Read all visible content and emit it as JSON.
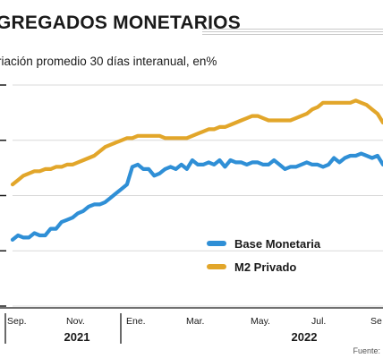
{
  "title": "GREGADOS MONETARIOS",
  "subtitle": "riación promedio 30 días interanual, en%",
  "source": "Fuente: I",
  "colors": {
    "base": "#2f8fd6",
    "m2": "#e2a62a",
    "grid": "#d9d9d9",
    "axis": "#1a1a1a"
  },
  "chart_data": {
    "type": "line",
    "title": "GREGADOS MONETARIOS",
    "subtitle": "riación promedio 30 días interanual, en%",
    "xlabel": "",
    "ylabel": "",
    "x_ticks": [
      "Sep.",
      "Nov.",
      "Ene.",
      "Mar.",
      "May.",
      "Jul.",
      "Se"
    ],
    "year_labels": [
      "2021",
      "2022"
    ],
    "ylim": [
      0,
      100
    ],
    "grid": true,
    "legend_position": "center-right",
    "x": [
      0,
      1,
      2,
      3,
      4,
      5,
      6,
      7,
      8,
      9,
      10,
      11,
      12,
      13,
      14,
      15,
      16,
      17,
      18,
      19,
      20,
      21,
      22,
      23,
      24,
      25,
      26,
      27,
      28,
      29,
      30,
      31,
      32,
      33,
      34,
      35,
      36,
      37,
      38,
      39,
      40,
      41,
      42,
      43,
      44,
      45,
      46,
      47,
      48,
      49,
      50,
      51,
      52,
      53,
      54,
      55,
      56,
      57,
      58,
      59,
      60,
      61,
      62,
      63,
      64,
      65,
      66,
      67,
      68
    ],
    "series": [
      {
        "name": "Base Monetaria",
        "color": "#2f8fd6",
        "values": [
          30,
          32,
          31,
          31,
          33,
          32,
          32,
          35,
          35,
          38,
          39,
          40,
          42,
          43,
          45,
          46,
          46,
          47,
          49,
          51,
          53,
          55,
          63,
          64,
          62,
          62,
          59,
          60,
          62,
          63,
          62,
          64,
          62,
          66,
          64,
          64,
          65,
          64,
          66,
          63,
          66,
          65,
          65,
          64,
          65,
          65,
          64,
          64,
          66,
          64,
          62,
          63,
          63,
          64,
          65,
          64,
          64,
          63,
          64,
          67,
          65,
          67,
          68,
          68,
          69,
          68,
          67,
          68,
          64
        ]
      },
      {
        "name": "M2 Privado",
        "color": "#e2a62a",
        "values": [
          55,
          57,
          59,
          60,
          61,
          61,
          62,
          62,
          63,
          63,
          64,
          64,
          65,
          66,
          67,
          68,
          70,
          72,
          73,
          74,
          75,
          76,
          76,
          77,
          77,
          77,
          77,
          77,
          76,
          76,
          76,
          76,
          76,
          77,
          78,
          79,
          80,
          80,
          81,
          81,
          82,
          83,
          84,
          85,
          86,
          86,
          85,
          84,
          84,
          84,
          84,
          84,
          85,
          86,
          87,
          89,
          90,
          92,
          92,
          92,
          92,
          92,
          92,
          93,
          92,
          91,
          89,
          87,
          83
        ]
      }
    ]
  }
}
